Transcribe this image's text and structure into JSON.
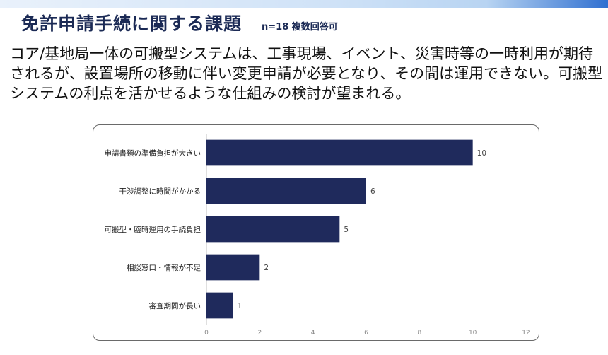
{
  "header": {
    "title": "免許申請手続に関する課題",
    "note": "n=18 複数回答可"
  },
  "description": "コア/基地局一体の可搬型システムは、工事現場、イベント、災害時等の一時利用が期待されるが、設置場所の移動に伴い変更申請が必要となり、その間は運用できない。可搬型システムの利点を活かせるような仕組みの検討が望まれる。",
  "colors": {
    "bar": "#1f2a5c",
    "title": "#1b2a55"
  },
  "chart_data": {
    "type": "bar",
    "orientation": "horizontal",
    "categories": [
      "申請書類の準備負担が大きい",
      "干渉調整に時間がかかる",
      "可搬型・臨時運用の手続負担",
      "相談窓口・情報が不足",
      "審査期間が長い"
    ],
    "values": [
      10,
      6,
      5,
      2,
      1
    ],
    "xlim": [
      0,
      12
    ],
    "xticks": [
      0,
      2,
      4,
      6,
      8,
      10,
      12
    ],
    "grid": false
  }
}
